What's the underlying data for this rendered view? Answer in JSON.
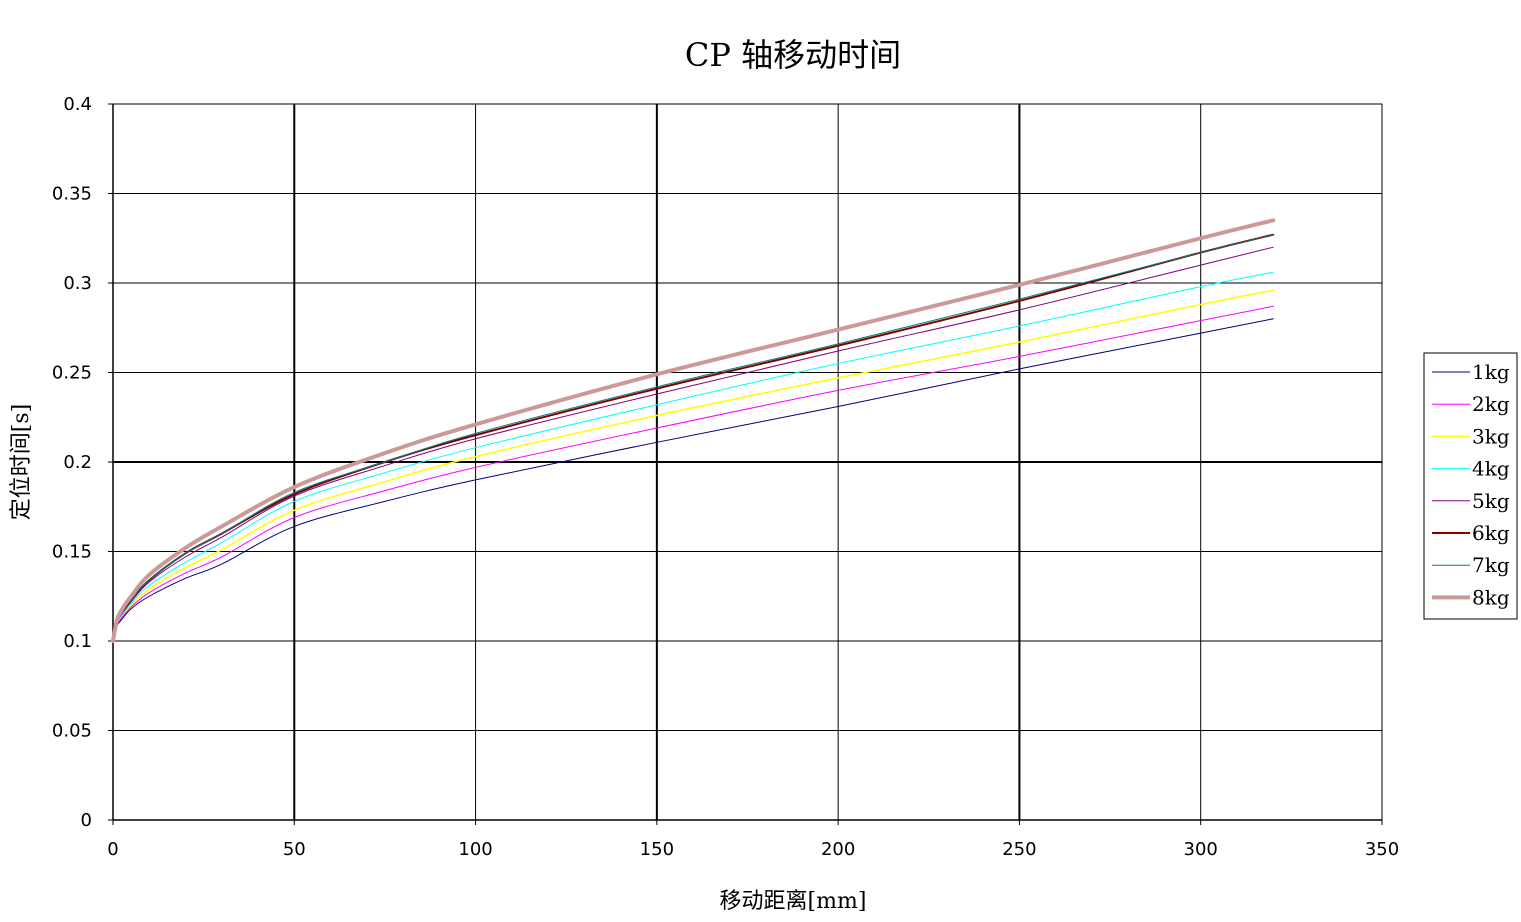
{
  "chart_data": {
    "type": "line",
    "title": "CP 轴移动时间",
    "xlabel": "移动距离[mm]",
    "ylabel": "定位时间[s]",
    "xlim": [
      0,
      350
    ],
    "ylim": [
      0,
      0.4
    ],
    "x_ticks": [
      "0",
      "50",
      "100",
      "150",
      "200",
      "250",
      "300",
      "350"
    ],
    "y_ticks": [
      "0",
      "0.05",
      "0.1",
      "0.15",
      "0.2",
      "0.25",
      "0.3",
      "0.35",
      "0.4"
    ],
    "grid": true,
    "legend_position": "right",
    "x": [
      0,
      1,
      2,
      5,
      10,
      20,
      30,
      50,
      75,
      100,
      150,
      200,
      250,
      300,
      320
    ],
    "series": [
      {
        "name": "1kg",
        "color": "#000080",
        "width": 1,
        "values": [
          0.1,
          0.108,
          0.111,
          0.118,
          0.125,
          0.135,
          0.143,
          0.164,
          0.178,
          0.19,
          0.211,
          0.231,
          0.252,
          0.272,
          0.28
        ]
      },
      {
        "name": "2kg",
        "color": "#ff00ff",
        "width": 1,
        "values": [
          0.1,
          0.108,
          0.112,
          0.119,
          0.127,
          0.138,
          0.147,
          0.169,
          0.184,
          0.197,
          0.219,
          0.24,
          0.259,
          0.279,
          0.287
        ]
      },
      {
        "name": "3kg",
        "color": "#ffff00",
        "width": 1.5,
        "values": [
          0.1,
          0.109,
          0.113,
          0.12,
          0.129,
          0.141,
          0.151,
          0.173,
          0.189,
          0.203,
          0.226,
          0.247,
          0.267,
          0.288,
          0.296
        ]
      },
      {
        "name": "4kg",
        "color": "#00ffff",
        "width": 1,
        "values": [
          0.1,
          0.109,
          0.113,
          0.121,
          0.131,
          0.144,
          0.155,
          0.178,
          0.194,
          0.208,
          0.232,
          0.255,
          0.276,
          0.298,
          0.306
        ]
      },
      {
        "name": "5kg",
        "color": "#800080",
        "width": 1,
        "values": [
          0.1,
          0.11,
          0.114,
          0.122,
          0.133,
          0.147,
          0.158,
          0.181,
          0.198,
          0.213,
          0.238,
          0.262,
          0.285,
          0.31,
          0.32
        ]
      },
      {
        "name": "6kg",
        "color": "#800000",
        "width": 2,
        "values": [
          0.1,
          0.11,
          0.115,
          0.123,
          0.134,
          0.149,
          0.16,
          0.182,
          0.2,
          0.215,
          0.241,
          0.265,
          0.29,
          0.317,
          0.327
        ]
      },
      {
        "name": "7kg",
        "color": "#008080",
        "width": 1,
        "values": [
          0.1,
          0.11,
          0.115,
          0.123,
          0.134,
          0.149,
          0.16,
          0.183,
          0.2,
          0.216,
          0.242,
          0.266,
          0.291,
          0.317,
          0.327
        ]
      },
      {
        "name": "8kg",
        "color": "#cc9999",
        "width": 4,
        "values": [
          0.1,
          0.111,
          0.116,
          0.125,
          0.137,
          0.152,
          0.164,
          0.186,
          0.205,
          0.221,
          0.249,
          0.274,
          0.299,
          0.325,
          0.335
        ]
      }
    ]
  }
}
